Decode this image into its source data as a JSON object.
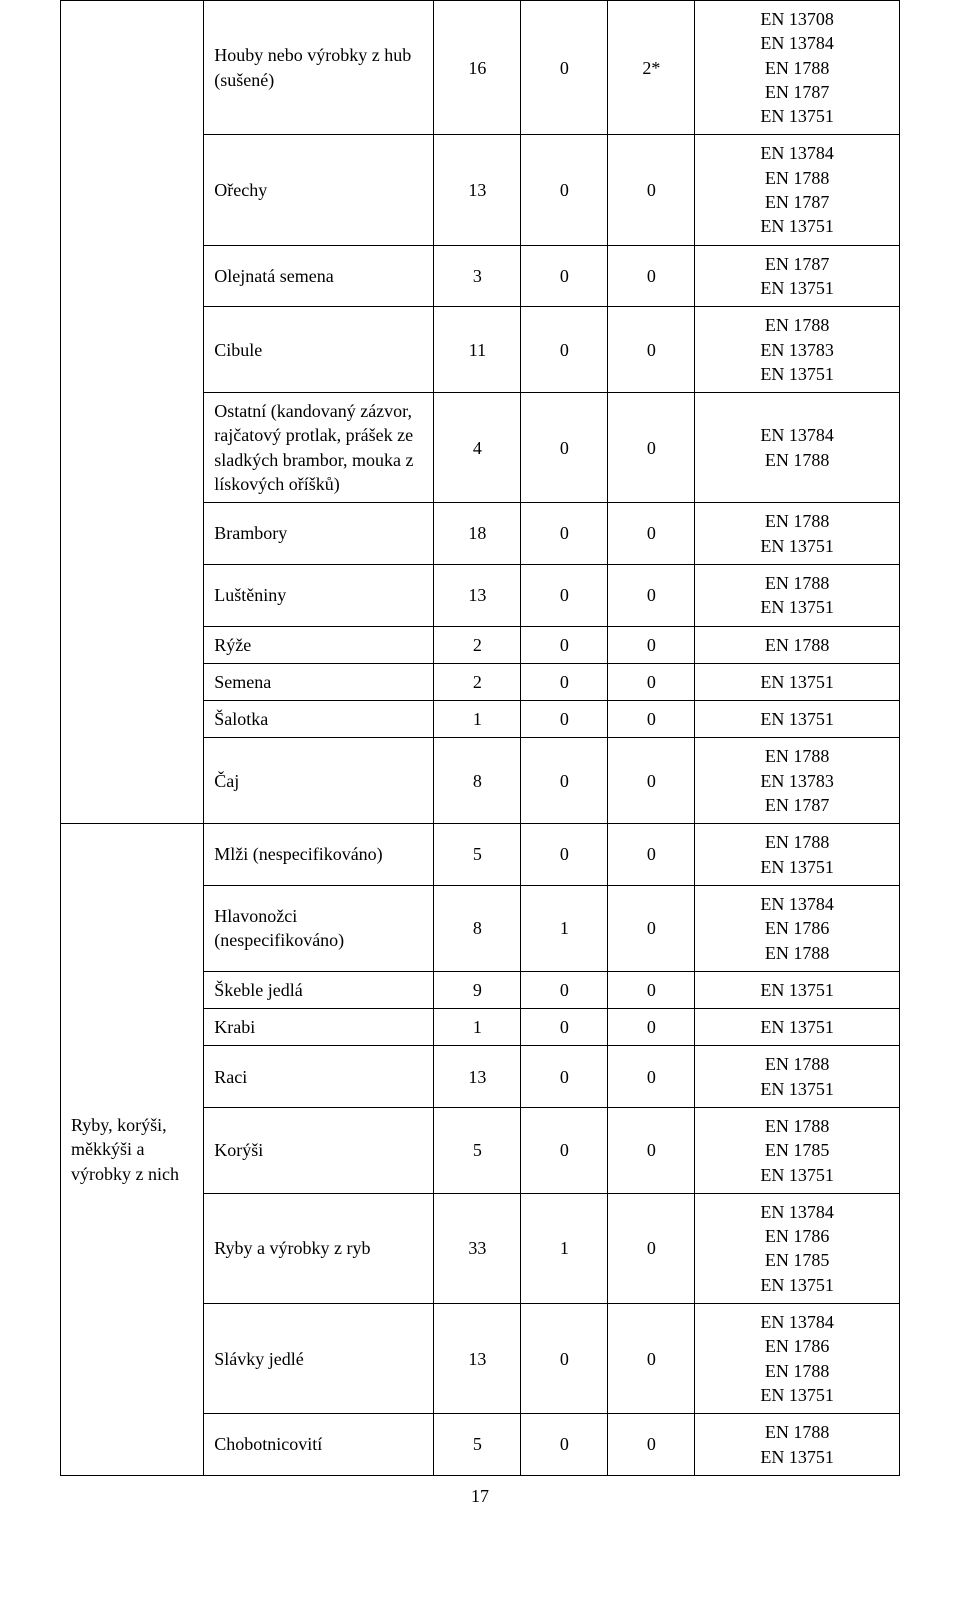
{
  "page_number": "17",
  "colors": {
    "background": "#ffffff",
    "border": "#000000",
    "text": "#000000"
  },
  "fonts": {
    "family": "Times New Roman",
    "base_size_pt": 13
  },
  "categories": {
    "cat2_label": "Ryby, korýši, měkkýši a výrobky z nich"
  },
  "rows": [
    {
      "cat": 1,
      "name": "Houby nebo výrobky z hub (sušené)",
      "c2": "16",
      "c3": "0",
      "c4": "2*",
      "en": "EN 13708\nEN 13784\nEN 1788\nEN 1787\nEN 13751"
    },
    {
      "cat": 1,
      "name": "Ořechy",
      "c2": "13",
      "c3": "0",
      "c4": "0",
      "en": "EN 13784\nEN 1788\nEN 1787\nEN 13751"
    },
    {
      "cat": 1,
      "name": "Olejnatá semena",
      "c2": "3",
      "c3": "0",
      "c4": "0",
      "en": "EN 1787\nEN 13751"
    },
    {
      "cat": 1,
      "name": "Cibule",
      "c2": "11",
      "c3": "0",
      "c4": "0",
      "en": "EN 1788\nEN 13783\nEN 13751"
    },
    {
      "cat": 1,
      "name": "Ostatní (kandovaný zázvor, rajčatový protlak, prášek ze sladkých brambor, mouka z lískových oříšků)",
      "c2": "4",
      "c3": "0",
      "c4": "0",
      "en": "EN 13784\nEN 1788"
    },
    {
      "cat": 1,
      "name": "Brambory",
      "c2": "18",
      "c3": "0",
      "c4": "0",
      "en": "EN 1788\nEN 13751"
    },
    {
      "cat": 1,
      "name": "Luštěniny",
      "c2": "13",
      "c3": "0",
      "c4": "0",
      "en": "EN 1788\nEN 13751"
    },
    {
      "cat": 1,
      "name": "Rýže",
      "c2": "2",
      "c3": "0",
      "c4": "0",
      "en": "EN 1788"
    },
    {
      "cat": 1,
      "name": "Semena",
      "c2": "2",
      "c3": "0",
      "c4": "0",
      "en": "EN 13751"
    },
    {
      "cat": 1,
      "name": "Šalotka",
      "c2": "1",
      "c3": "0",
      "c4": "0",
      "en": "EN 13751"
    },
    {
      "cat": 1,
      "name": "Čaj",
      "c2": "8",
      "c3": "0",
      "c4": "0",
      "en": "EN 1788\nEN 13783\nEN 1787"
    },
    {
      "cat": 2,
      "name": "Mlži (nespecifikováno)",
      "c2": "5",
      "c3": "0",
      "c4": "0",
      "en": "EN 1788\nEN 13751"
    },
    {
      "cat": 2,
      "name": "Hlavonožci (nespecifikováno)",
      "c2": "8",
      "c3": "1",
      "c4": "0",
      "en": "EN 13784\nEN 1786\nEN 1788"
    },
    {
      "cat": 2,
      "name": "Škeble jedlá",
      "c2": "9",
      "c3": "0",
      "c4": "0",
      "en": "EN 13751"
    },
    {
      "cat": 2,
      "name": "Krabi",
      "c2": "1",
      "c3": "0",
      "c4": "0",
      "en": "EN 13751"
    },
    {
      "cat": 2,
      "name": "Raci",
      "c2": "13",
      "c3": "0",
      "c4": "0",
      "en": "EN 1788\nEN 13751"
    },
    {
      "cat": 2,
      "name": "Korýši",
      "c2": "5",
      "c3": "0",
      "c4": "0",
      "en": "EN 1788\nEN 1785\nEN 13751"
    },
    {
      "cat": 2,
      "name": "Ryby a výrobky z ryb",
      "c2": "33",
      "c3": "1",
      "c4": "0",
      "en": "EN 13784\nEN 1786\nEN 1785\nEN 13751"
    },
    {
      "cat": 2,
      "name": "Slávky jedlé",
      "c2": "13",
      "c3": "0",
      "c4": "0",
      "en": "EN 13784\nEN 1786\nEN 1788\nEN 13751"
    },
    {
      "cat": 2,
      "name": "Chobotnicovití",
      "c2": "5",
      "c3": "0",
      "c4": "0",
      "en": "EN 1788\nEN 13751"
    }
  ]
}
